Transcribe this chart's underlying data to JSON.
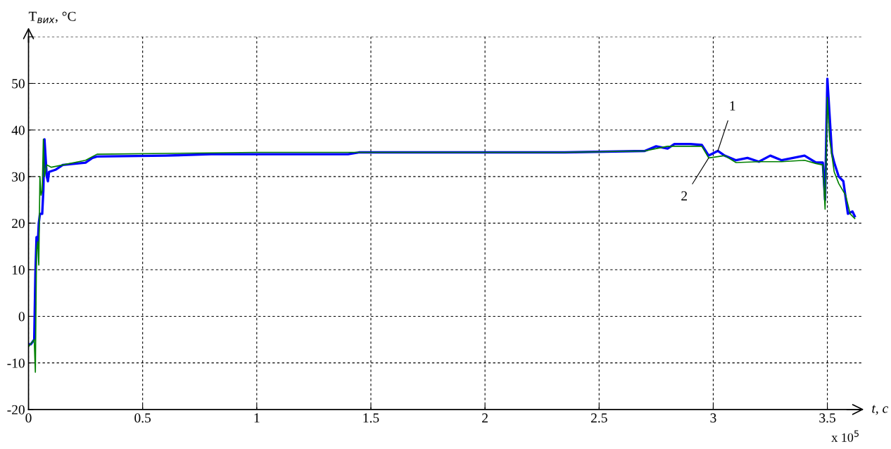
{
  "chart_data": {
    "type": "line",
    "xlabel": "t, c",
    "ylabel": "T$_{вих}$, °C",
    "xlim": [
      0,
      3.65
    ],
    "ylim": [
      -20,
      60
    ],
    "xticks": [
      0,
      0.5,
      1,
      1.5,
      2,
      2.5,
      3,
      3.5
    ],
    "yticks": [
      -20,
      -10,
      0,
      10,
      20,
      30,
      40,
      50,
      {
        "value": 60,
        "label": null
      }
    ],
    "grid": true,
    "legend": false,
    "marker": "none",
    "line_style": "solid",
    "annotations": [
      {
        "text": "1",
        "x": 3.02,
        "y": 35.5
      },
      {
        "text": "2",
        "x": 2.98,
        "y": 34
      },
      "x 10$^{5}$"
    ],
    "series": [
      {
        "color": "#0000ff",
        "x": [
          0,
          0.01,
          0.025,
          0.03,
          0.035,
          0.04,
          0.045,
          0.05,
          0.06,
          0.065,
          0.07,
          0.08,
          0.085,
          0.09,
          0.12,
          0.15,
          0.25,
          0.28,
          0.3,
          0.6,
          0.8,
          1.0,
          1.4,
          1.45,
          2.35,
          2.7,
          2.75,
          2.8,
          2.83,
          2.9,
          2.95,
          2.98,
          3.0,
          3.02,
          3.05,
          3.1,
          3.15,
          3.2,
          3.25,
          3.3,
          3.35,
          3.4,
          3.45,
          3.48,
          3.49,
          3.5,
          3.51,
          3.52,
          3.53,
          3.55,
          3.57,
          3.59,
          3.61,
          3.62
        ],
        "values": [
          -6,
          -6,
          -5,
          9,
          17,
          15,
          20,
          22,
          22,
          27,
          38,
          30,
          29,
          31,
          31.5,
          32.5,
          33,
          34,
          34.3,
          34.5,
          34.8,
          34.8,
          34.8,
          35.2,
          35.2,
          35.5,
          36.5,
          36,
          37,
          37,
          36.8,
          34.5,
          35,
          35.5,
          34.5,
          33.5,
          34,
          33.2,
          34.5,
          33.5,
          34,
          34.5,
          33,
          33,
          25,
          51,
          43,
          35,
          33,
          30,
          29,
          22,
          22.5,
          21.5
        ]
      },
      {
        "color": "#008000",
        "x": [
          0,
          0.025,
          0.03,
          0.035,
          0.04,
          0.045,
          0.05,
          0.055,
          0.06,
          0.065,
          0.07,
          0.08,
          0.1,
          0.15,
          0.25,
          0.3,
          1.0,
          1.5,
          2.35,
          2.7,
          2.75,
          2.8,
          2.95,
          2.98,
          3.05,
          3.1,
          3.2,
          3.3,
          3.4,
          3.45,
          3.48,
          3.49,
          3.5,
          3.51,
          3.53,
          3.55,
          3.58,
          3.6,
          3.62
        ],
        "values": [
          -6.5,
          -5,
          -12,
          14,
          16,
          11,
          30,
          26,
          27,
          38,
          30,
          32.5,
          32,
          32.5,
          33.5,
          34.8,
          35.2,
          35.2,
          35.2,
          35.5,
          36,
          36.5,
          36.5,
          34,
          34.5,
          33,
          33.2,
          33.2,
          33.5,
          32.8,
          32.5,
          23,
          47,
          38,
          31,
          28.5,
          26,
          22,
          21
        ]
      }
    ]
  }
}
